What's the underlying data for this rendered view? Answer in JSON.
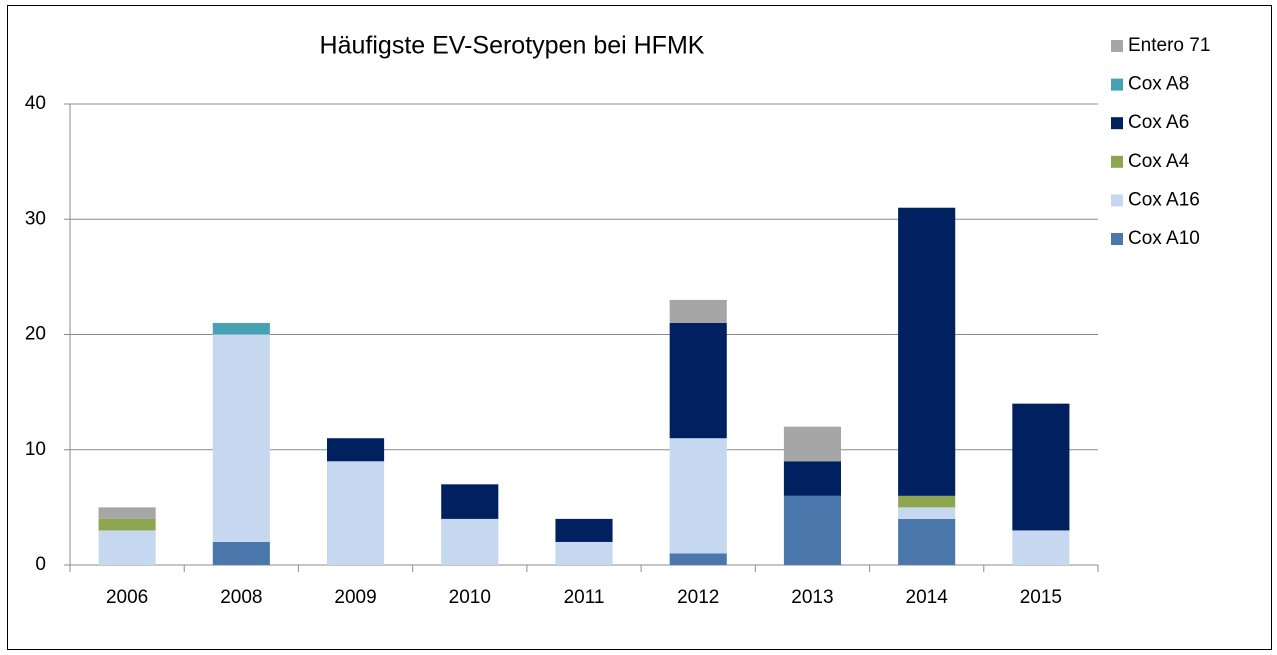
{
  "chart_data": {
    "type": "bar",
    "stacked": true,
    "title": "Häufigste EV-Serotypen bei HFMK",
    "categories": [
      "2006",
      "2008",
      "2009",
      "2010",
      "2011",
      "2012",
      "2013",
      "2014",
      "2015"
    ],
    "series": [
      {
        "name": "Cox A10",
        "color": "#4a78ad",
        "values": [
          0,
          2,
          0,
          0,
          0,
          1,
          6,
          4,
          0
        ]
      },
      {
        "name": "Cox A16",
        "color": "#c6d8f0",
        "values": [
          3,
          18,
          9,
          4,
          2,
          10,
          0,
          1,
          3
        ]
      },
      {
        "name": "Cox A4",
        "color": "#8ea64f",
        "values": [
          1,
          0,
          0,
          0,
          0,
          0,
          0,
          1,
          0
        ]
      },
      {
        "name": "Cox A6",
        "color": "#002060",
        "values": [
          0,
          0,
          2,
          3,
          2,
          10,
          3,
          25,
          11
        ]
      },
      {
        "name": "Cox A8",
        "color": "#45a1b3",
        "values": [
          0,
          1,
          0,
          0,
          0,
          0,
          0,
          0,
          0
        ]
      },
      {
        "name": "Entero 71",
        "color": "#a6a6a6",
        "values": [
          1,
          0,
          0,
          0,
          0,
          2,
          3,
          0,
          0
        ]
      }
    ],
    "ylim": [
      0,
      40
    ],
    "yticks": [
      0,
      10,
      20,
      30,
      40
    ],
    "grid": true,
    "legend": "right"
  }
}
